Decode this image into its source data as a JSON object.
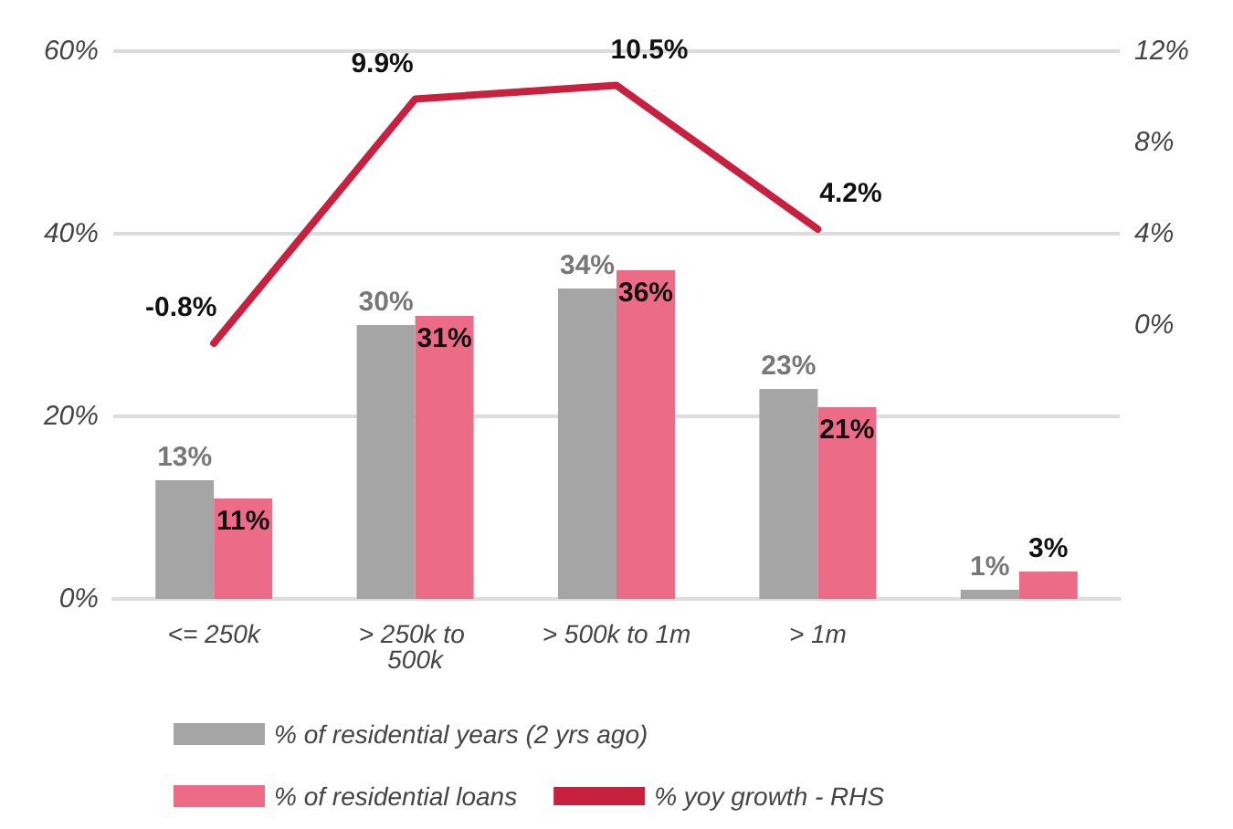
{
  "chart_data": {
    "type": "bar",
    "categories": [
      "<= 250k",
      "> 250k to 500k",
      "> 500k to 1m",
      "> 1m",
      null
    ],
    "series": [
      {
        "name": "% of residential years (2 yrs ago)",
        "color": "#a5a5a5",
        "values": [
          13,
          30,
          34,
          23,
          1
        ],
        "value_labels": [
          "13%",
          "30%",
          "34%",
          "23%",
          "1%"
        ]
      },
      {
        "name": "% of residential loans",
        "color": "#ec6b86",
        "values": [
          11,
          31,
          36,
          21,
          3
        ],
        "value_labels": [
          "11%",
          "31%",
          "36%",
          "21%",
          "3%"
        ]
      },
      {
        "name": "% yoy growth - RHS",
        "type": "line",
        "axis": "y2",
        "color": "#c8203f",
        "values": [
          -0.8,
          9.9,
          10.5,
          4.2,
          null
        ],
        "value_labels": [
          "-0.8%",
          "9.9%",
          "10.5%",
          "4.2%",
          null
        ]
      }
    ],
    "ylim": [
      0,
      60
    ],
    "yticks": [
      {
        "value": 0,
        "label": "0%"
      },
      {
        "value": 20,
        "label": "20%"
      },
      {
        "value": 40,
        "label": "40%"
      },
      {
        "value": 60,
        "label": "60%"
      }
    ],
    "y2lim": [
      -12,
      12
    ],
    "y2ticks": [
      {
        "value": 0,
        "label": "0%"
      },
      {
        "value": 4,
        "label": "4%"
      },
      {
        "value": 8,
        "label": "8%"
      },
      {
        "value": 12,
        "label": "12%"
      }
    ],
    "grid": "y",
    "legend": "bottom",
    "marker": "none"
  }
}
